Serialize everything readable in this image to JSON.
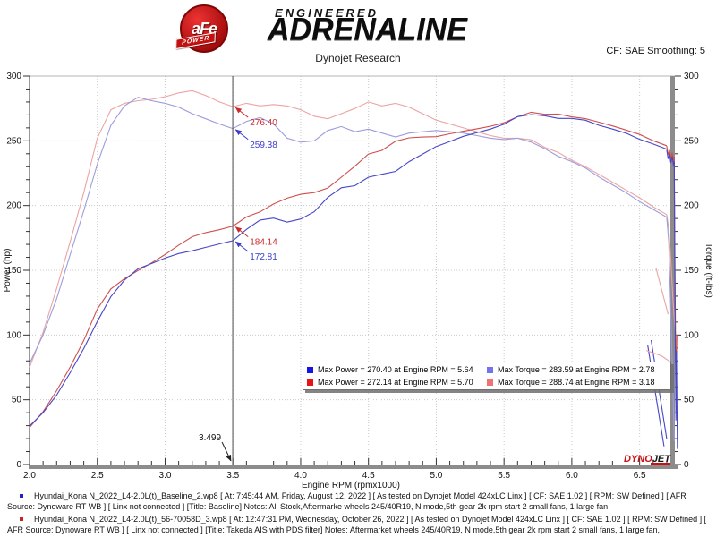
{
  "header": {
    "logo_circle_text": "aFe",
    "logo_ribbon_text": "POWER",
    "logo_line1": "ENGINEERED",
    "logo_line2": "ADRENALINE",
    "subtitle": "Dynojet Research",
    "smoothing_text": "CF: SAE Smoothing: 5"
  },
  "chart_data": {
    "type": "line",
    "xlabel": "Engine RPM (rpmx1000)",
    "ylabel_left": "Power (hp)",
    "ylabel_right": "Torque (ft-lbs)",
    "xlim": [
      2.0,
      6.74
    ],
    "ylim": [
      0,
      300
    ],
    "x_tick_labels": [
      "2.0",
      "2.5",
      "3.0",
      "3.5",
      "4.0",
      "4.5",
      "5.0",
      "5.5",
      "6.0",
      "6.5"
    ],
    "y_tick_labels": [
      "0",
      "50",
      "100",
      "150",
      "200",
      "250",
      "300"
    ],
    "x_minor_step": 0.1,
    "y_minor_step": 10,
    "grid": "dotted",
    "x": [
      2.0,
      2.1,
      2.2,
      2.3,
      2.4,
      2.5,
      2.6,
      2.7,
      2.8,
      2.9,
      3.0,
      3.1,
      3.2,
      3.3,
      3.4,
      3.5,
      3.6,
      3.7,
      3.8,
      3.9,
      4.0,
      4.1,
      4.2,
      4.3,
      4.4,
      4.5,
      4.6,
      4.7,
      4.8,
      4.9,
      5.0,
      5.1,
      5.2,
      5.3,
      5.4,
      5.5,
      5.6,
      5.7,
      5.8,
      5.9,
      6.0,
      6.1,
      6.2,
      6.3,
      6.4,
      6.5,
      6.6,
      6.7
    ],
    "series": [
      {
        "id": "torque_takeda",
        "axis": "right",
        "color": "#eba4a4",
        "values": [
          75,
          102,
          136,
          172,
          210,
          252,
          274,
          279,
          281,
          282,
          284,
          287,
          288.7,
          285,
          280,
          276.4,
          279,
          277,
          278,
          277,
          274,
          269,
          267,
          271,
          275,
          280,
          277,
          279,
          276,
          271,
          266,
          263,
          260,
          257,
          254,
          252,
          252,
          250.8,
          245,
          241,
          235,
          230,
          224,
          218,
          212,
          206,
          199,
          193
        ]
      },
      {
        "id": "torque_baseline",
        "axis": "right",
        "color": "#9c9cdd",
        "values": [
          78,
          100,
          128,
          162,
          196,
          232,
          262,
          277,
          283.6,
          281,
          279,
          276,
          271,
          267,
          263,
          259.4,
          265,
          268,
          263,
          252,
          249,
          250,
          258,
          261,
          257,
          259,
          256,
          253,
          256,
          257,
          258,
          257,
          256,
          254,
          252,
          251,
          252,
          249,
          244,
          238,
          234,
          229,
          222,
          216,
          210,
          203,
          197,
          191
        ]
      },
      {
        "id": "power_takeda",
        "axis": "left",
        "color": "#cf4f4f",
        "values": [
          28.6,
          40.8,
          57,
          75.3,
          95.9,
          120,
          135.6,
          143.4,
          149.8,
          155.7,
          162.2,
          169.4,
          175.9,
          179.1,
          181.3,
          184.1,
          191.2,
          195.1,
          201.2,
          205.7,
          208.7,
          210,
          213.5,
          221.9,
          230.4,
          239.8,
          242.6,
          249.7,
          252.3,
          252.9,
          253.2,
          255.4,
          257.4,
          259.3,
          261.2,
          263.9,
          268.6,
          272.1,
          270.5,
          270.7,
          268.5,
          267.1,
          264.4,
          261.5,
          258.3,
          254.9,
          250.1,
          246.2
        ]
      },
      {
        "id": "power_baseline",
        "axis": "left",
        "color": "#4646c8",
        "values": [
          29.7,
          40,
          53.6,
          70.9,
          89.6,
          110.4,
          129.7,
          142.4,
          151.2,
          155.2,
          159.4,
          162.9,
          165.1,
          167.7,
          170.3,
          172.8,
          181.6,
          188.8,
          190.3,
          187.2,
          189.6,
          195.2,
          206.3,
          213.7,
          215.3,
          221.9,
          224.2,
          226.4,
          233.9,
          239.8,
          245.6,
          249.5,
          253.5,
          256.3,
          259.1,
          262.8,
          268.7,
          270.3,
          269.4,
          267.3,
          267.3,
          265.9,
          262,
          259.1,
          255.9,
          251.2,
          247.5,
          243.6
        ]
      }
    ],
    "noise_segments": [
      {
        "series": "torque_takeda",
        "points": [
          [
            6.7,
            193
          ],
          [
            6.715,
            182
          ],
          [
            6.73,
            158
          ],
          [
            6.745,
            128
          ],
          [
            6.76,
            106
          ],
          [
            6.775,
            92
          ]
        ]
      },
      {
        "series": "torque_baseline",
        "points": [
          [
            6.7,
            191
          ],
          [
            6.715,
            172
          ],
          [
            6.73,
            118
          ],
          [
            6.745,
            60
          ],
          [
            6.755,
            18
          ]
        ]
      },
      {
        "series": "power_takeda",
        "points": [
          [
            6.7,
            246
          ],
          [
            6.71,
            239
          ],
          [
            6.72,
            243
          ],
          [
            6.73,
            236
          ],
          [
            6.74,
            241
          ],
          [
            6.75,
            234
          ],
          [
            6.755,
            238
          ],
          [
            6.76,
            165
          ],
          [
            6.768,
            60
          ],
          [
            6.775,
            100
          ]
        ]
      },
      {
        "series": "power_baseline",
        "points": [
          [
            6.7,
            243
          ],
          [
            6.71,
            236
          ],
          [
            6.72,
            240
          ],
          [
            6.73,
            233
          ],
          [
            6.74,
            238
          ],
          [
            6.75,
            231
          ],
          [
            6.755,
            234
          ],
          [
            6.762,
            110
          ],
          [
            6.768,
            34
          ],
          [
            6.772,
            88
          ],
          [
            6.778,
            12
          ]
        ]
      },
      {
        "series": "power_baseline",
        "points": [
          [
            6.56,
            92
          ],
          [
            6.68,
            14
          ]
        ]
      },
      {
        "series": "power_baseline",
        "points": [
          [
            6.585,
            96
          ],
          [
            6.7,
            20
          ]
        ]
      },
      {
        "series": "torque_takeda",
        "points": [
          [
            6.55,
            88
          ],
          [
            6.66,
            84
          ],
          [
            6.73,
            79
          ]
        ]
      },
      {
        "series": "torque_takeda",
        "points": [
          [
            6.62,
            152
          ],
          [
            6.71,
            116
          ]
        ]
      }
    ],
    "cursor": {
      "x": 3.499,
      "label": "3.499"
    },
    "annotations": [
      {
        "text": "276.40",
        "rpm": 3.5,
        "value": 276.4,
        "color": "#cc2a2a"
      },
      {
        "text": "259.38",
        "rpm": 3.5,
        "value": 259.38,
        "color": "#3b3bcc"
      },
      {
        "text": "184.14",
        "rpm": 3.5,
        "value": 184.14,
        "color": "#cc2a2a"
      },
      {
        "text": "172.81",
        "rpm": 3.5,
        "value": 172.81,
        "color": "#3b3bcc"
      }
    ],
    "legend": {
      "position": "bottom-center",
      "rows": [
        {
          "swatch": "#1414e6",
          "text": "Max Power = 270.40 at Engine RPM = 5.64"
        },
        {
          "swatch": "#e61414",
          "text": "Max Power = 272.14 at Engine RPM = 5.70"
        },
        {
          "swatch": "#7373f0",
          "text": "Max Torque = 283.59 at Engine RPM = 2.78"
        },
        {
          "swatch": "#f07373",
          "text": "Max Torque = 288.74 at Engine RPM = 3.18"
        }
      ]
    },
    "watermark": {
      "text_red": "DYNO",
      "text_black": "JET"
    },
    "colors": {
      "grid": "#c9c9c9",
      "spine": "#8c8c8c",
      "tick": "#333333",
      "cursor": "#4a4a4a"
    }
  },
  "footer": {
    "notes": [
      {
        "bullet_color": "#2222cc",
        "text": "Hyundai_Kona N_2022_L4-2.0L(t)_Baseline_2.wp8 [ At: 7:45:44 AM, Friday, August 12, 2022 ] [ As tested on Dynojet Model 424xLC Linx ] [ CF: SAE 1.02 ] [ RPM: SW Defined ] [ AFR Source: Dynoware RT WB ] [ Linx not connected ] [Title: Baseline]  Notes: All Stock,Aftermarke wheels 245/40R19, N mode,5th gear 2k rpm start 2 small fans, 1 large fan"
      },
      {
        "bullet_color": "#cc2222",
        "text": "Hyundai_Kona N_2022_L4-2.0L(t)_56-70058D_3.wp8 [ At: 12:47:31 PM, Wednesday, October 26, 2022 ] [ As tested on Dynojet Model 424xLC Linx ] [ CF: SAE 1.02 ] [ RPM: SW Defined ] [ AFR Source: Dynoware RT WB ] [ Linx not connected ] [Title: Takeda AIS with PDS filter]  Notes:  Aftermarket wheels 245/40R19, N mode,5th gear 2k rpm start 2 small fans, 1 large fan,"
      }
    ]
  }
}
